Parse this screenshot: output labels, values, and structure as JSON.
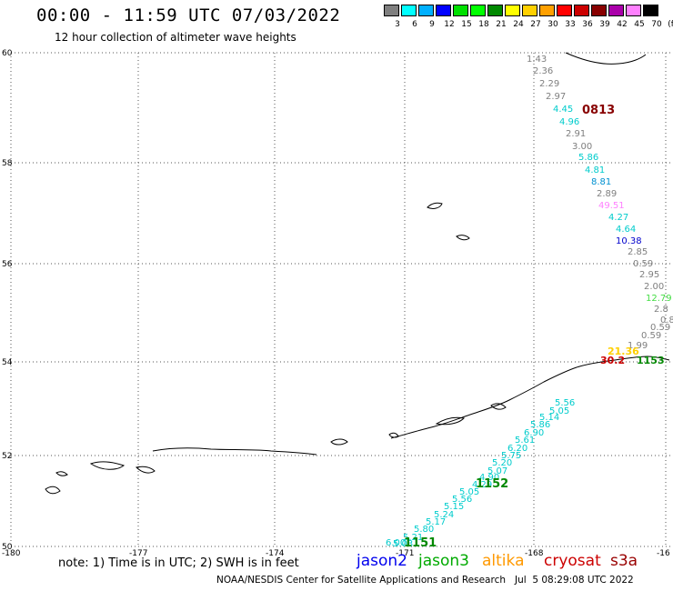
{
  "header": {
    "title": "00:00 - 11:59 UTC 07/03/2022",
    "subtitle": "12 hour collection of altimeter wave heights"
  },
  "legend": {
    "labels": [
      "3",
      "6",
      "9",
      "12",
      "15",
      "18",
      "21",
      "24",
      "27",
      "30",
      "33",
      "36",
      "39",
      "42",
      "45",
      "70",
      "(ft)"
    ],
    "colors": [
      "#7f7f7f",
      "#00ffff",
      "#00b0ff",
      "#0000ff",
      "#00e000",
      "#00ff00",
      "#008800",
      "#ffff00",
      "#ffd000",
      "#ffa000",
      "#ff0000",
      "#cc0000",
      "#880000",
      "#aa00aa",
      "#ff80ff",
      "#000000"
    ]
  },
  "axes": {
    "lat_labels": [
      "60",
      "58",
      "56",
      "54",
      "52",
      "50"
    ],
    "lon_labels": [
      "-180",
      "-177",
      "-174",
      "-171",
      "-168",
      "-16"
    ]
  },
  "tracks": {
    "track_a_labels": [
      {
        "text": "1.43",
        "color": "#7f7f7f"
      },
      {
        "text": "2.36",
        "color": "#7f7f7f"
      },
      {
        "text": "2.29",
        "color": "#7f7f7f"
      },
      {
        "text": "2.97",
        "color": "#7f7f7f"
      },
      {
        "text": "4.45",
        "color": "#00cccc"
      },
      {
        "text": "4.96",
        "color": "#00cccc"
      },
      {
        "text": "2.91",
        "color": "#7f7f7f"
      },
      {
        "text": "3.00",
        "color": "#7f7f7f"
      },
      {
        "text": "5.86",
        "color": "#00cccc"
      },
      {
        "text": "4.81",
        "color": "#00cccc"
      },
      {
        "text": "8.81",
        "color": "#0090d0"
      },
      {
        "text": "2.89",
        "color": "#7f7f7f"
      },
      {
        "text": "49.51",
        "color": "#ff80ff"
      },
      {
        "text": "4.27",
        "color": "#00cccc"
      },
      {
        "text": "4.64",
        "color": "#00cccc"
      },
      {
        "text": "10.38",
        "color": "#0000cc"
      },
      {
        "text": "2.85",
        "color": "#7f7f7f"
      },
      {
        "text": "0.59",
        "color": "#7f7f7f"
      },
      {
        "text": "2.95",
        "color": "#7f7f7f"
      },
      {
        "text": "2.00",
        "color": "#7f7f7f"
      },
      {
        "text": "12.79",
        "color": "#44dd44"
      },
      {
        "text": "2.8",
        "color": "#7f7f7f"
      },
      {
        "text": "0.8",
        "color": "#7f7f7f"
      },
      {
        "text": "0.59",
        "color": "#7f7f7f"
      },
      {
        "text": "0.59",
        "color": "#7f7f7f"
      },
      {
        "text": "1.99",
        "color": "#7f7f7f"
      }
    ],
    "track_a_time": {
      "text": "0813",
      "color": "#880000"
    },
    "track_b_labels": [
      {
        "text": "5.56",
        "color": "#00cccc"
      },
      {
        "text": "5.05",
        "color": "#00cccc"
      },
      {
        "text": "5.14",
        "color": "#00cccc"
      },
      {
        "text": "5.86",
        "color": "#00cccc"
      },
      {
        "text": "6.90",
        "color": "#00cccc"
      },
      {
        "text": "5.61",
        "color": "#00cccc"
      },
      {
        "text": "6.20",
        "color": "#00cccc"
      },
      {
        "text": "5.75",
        "color": "#00cccc"
      },
      {
        "text": "5.20",
        "color": "#00cccc"
      },
      {
        "text": "5.07",
        "color": "#00cccc"
      },
      {
        "text": "4.90",
        "color": "#00cccc"
      },
      {
        "text": "4.29",
        "color": "#00cccc"
      },
      {
        "text": "5.05",
        "color": "#00cccc"
      },
      {
        "text": "5.56",
        "color": "#00cccc"
      },
      {
        "text": "5.15",
        "color": "#00cccc"
      },
      {
        "text": "5.24",
        "color": "#00cccc"
      },
      {
        "text": "5.17",
        "color": "#00cccc"
      },
      {
        "text": "5.80",
        "color": "#00cccc"
      },
      {
        "text": "5.21",
        "color": "#00cccc"
      },
      {
        "text": "5.03",
        "color": "#00cccc"
      },
      {
        "text": "6.00",
        "color": "#00cccc"
      }
    ],
    "track_b_times": [
      {
        "text": "1152",
        "color": "#008800"
      },
      {
        "text": "1151",
        "color": "#008800"
      }
    ],
    "cluster_labels": [
      {
        "text": "21.36",
        "color": "#ffd000"
      },
      {
        "text": "30.2",
        "color": "#cc0000"
      },
      {
        "text": "1153",
        "color": "#008800"
      }
    ]
  },
  "footer": {
    "note": "note: 1) Time is in UTC; 2) SWH is in feet",
    "satellites": [
      {
        "name": "jason2",
        "color": "#0000ee"
      },
      {
        "name": "jason3",
        "color": "#00aa00"
      },
      {
        "name": "altika",
        "color": "#ff9900"
      },
      {
        "name": "cryosat",
        "color": "#cc0000"
      },
      {
        "name": "s3a",
        "color": "#990000"
      }
    ],
    "credit": "NOAA/NESDIS Center for Satellite Applications and Research   Jul  5 08:29:08 UTC 2022"
  }
}
